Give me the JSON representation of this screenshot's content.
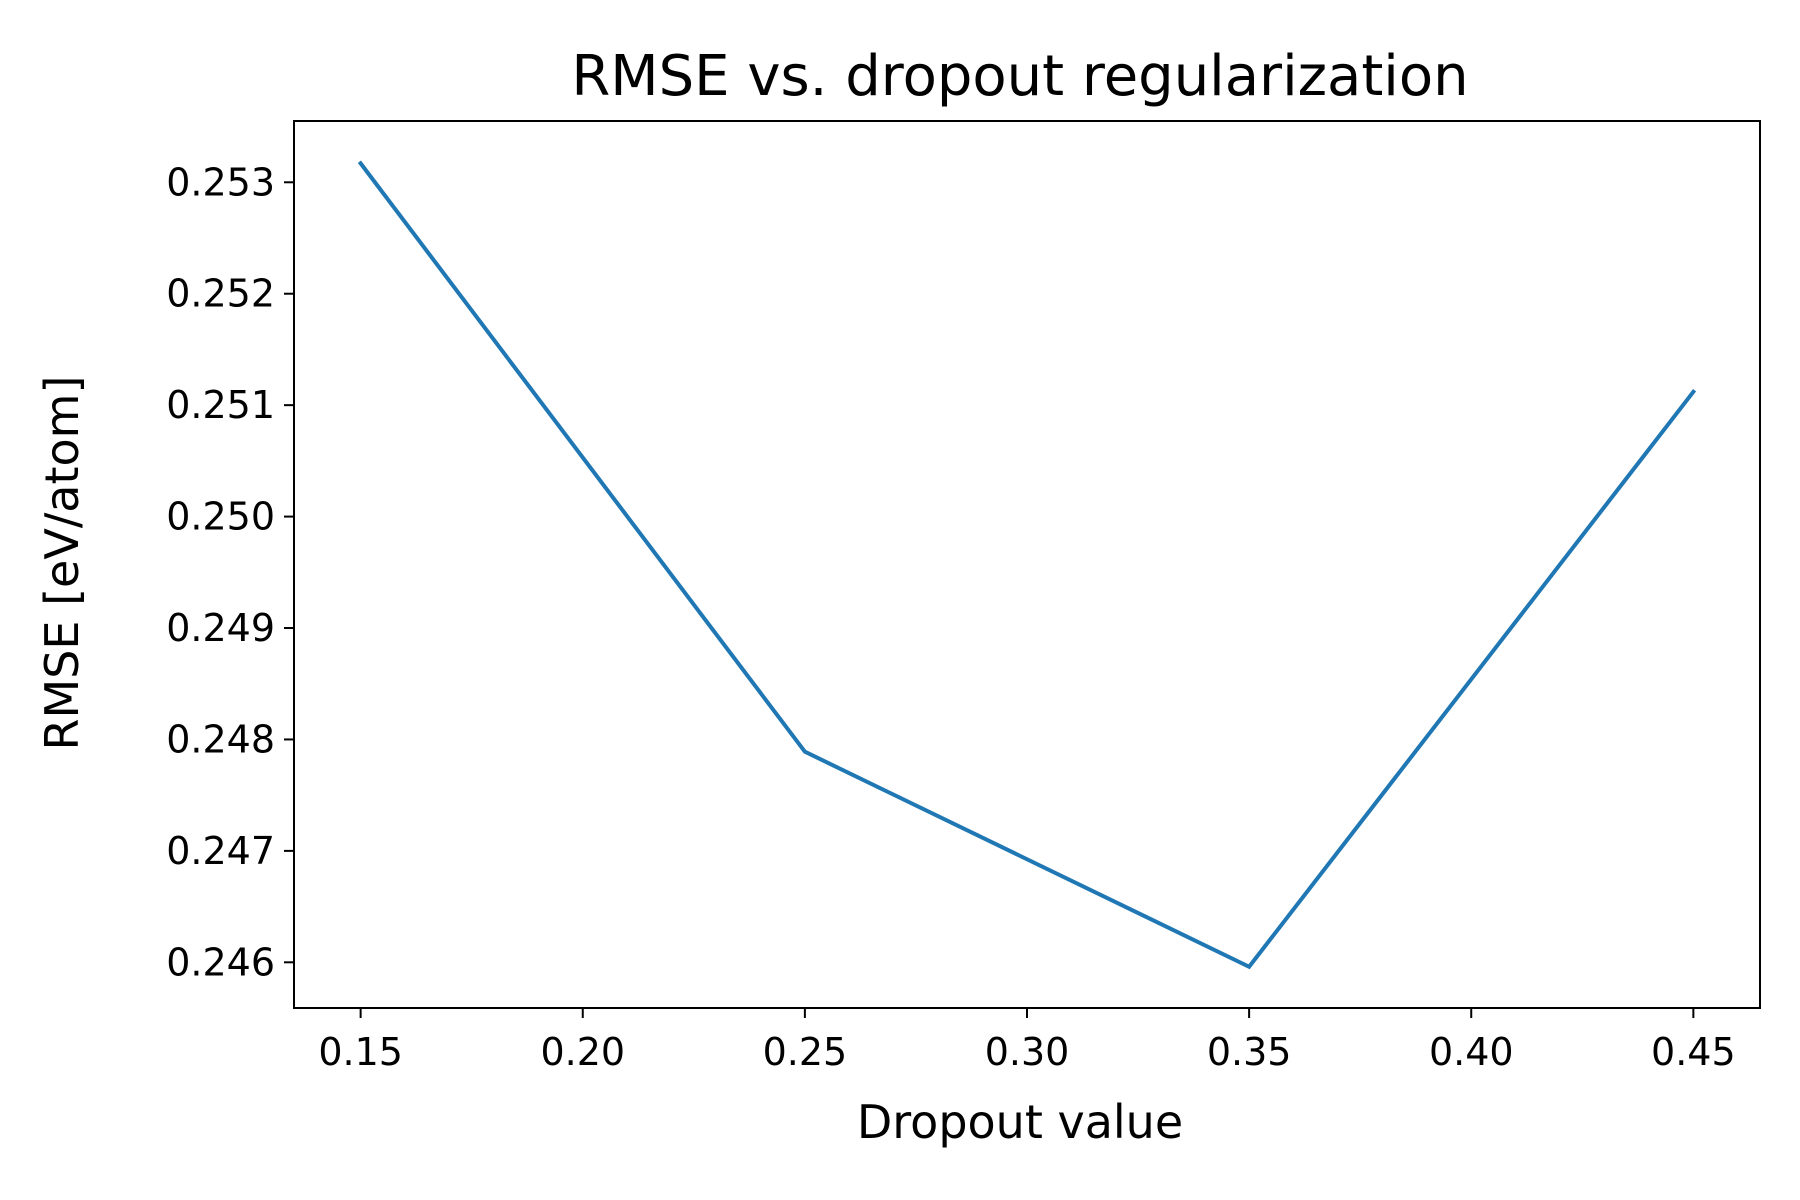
{
  "chart_data": {
    "type": "line",
    "title": "RMSE vs. dropout regularization",
    "xlabel": "Dropout value",
    "ylabel": "RMSE [eV/atom]",
    "xlim": [
      0.135,
      0.465
    ],
    "ylim": [
      0.24559,
      0.25355
    ],
    "x_ticks": [
      0.15,
      0.2,
      0.25,
      0.3,
      0.35,
      0.4,
      0.45
    ],
    "x_tick_labels": [
      "0.15",
      "0.20",
      "0.25",
      "0.30",
      "0.35",
      "0.40",
      "0.45"
    ],
    "y_ticks": [
      0.246,
      0.247,
      0.248,
      0.249,
      0.25,
      0.251,
      0.252,
      0.253
    ],
    "y_tick_labels": [
      "0.246",
      "0.247",
      "0.248",
      "0.249",
      "0.250",
      "0.251",
      "0.252",
      "0.253"
    ],
    "grid": false,
    "series": [
      {
        "color": "#1f77b4",
        "x": [
          0.15,
          0.25,
          0.35,
          0.45
        ],
        "y": [
          0.25317,
          0.24789,
          0.24596,
          0.25112
        ]
      }
    ]
  }
}
